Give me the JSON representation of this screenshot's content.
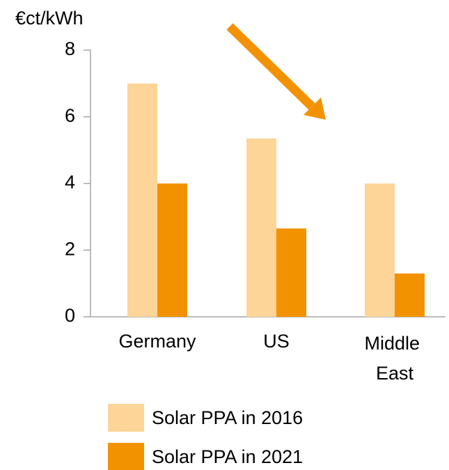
{
  "chart_data": {
    "type": "bar",
    "y_label": "€ct/kWh",
    "categories": [
      "Germany",
      "US",
      "Middle East"
    ],
    "series": [
      {
        "name": "Solar PPA in 2016",
        "color": "#fdd598",
        "values": [
          7.0,
          5.35,
          4.0
        ]
      },
      {
        "name": "Solar PPA in 2021",
        "color": "#f39200",
        "values": [
          4.0,
          2.65,
          1.3
        ]
      }
    ],
    "ylim": [
      0,
      8
    ],
    "yticks": [
      0,
      2,
      4,
      6,
      8
    ],
    "grid": false,
    "legend": "bottom"
  }
}
